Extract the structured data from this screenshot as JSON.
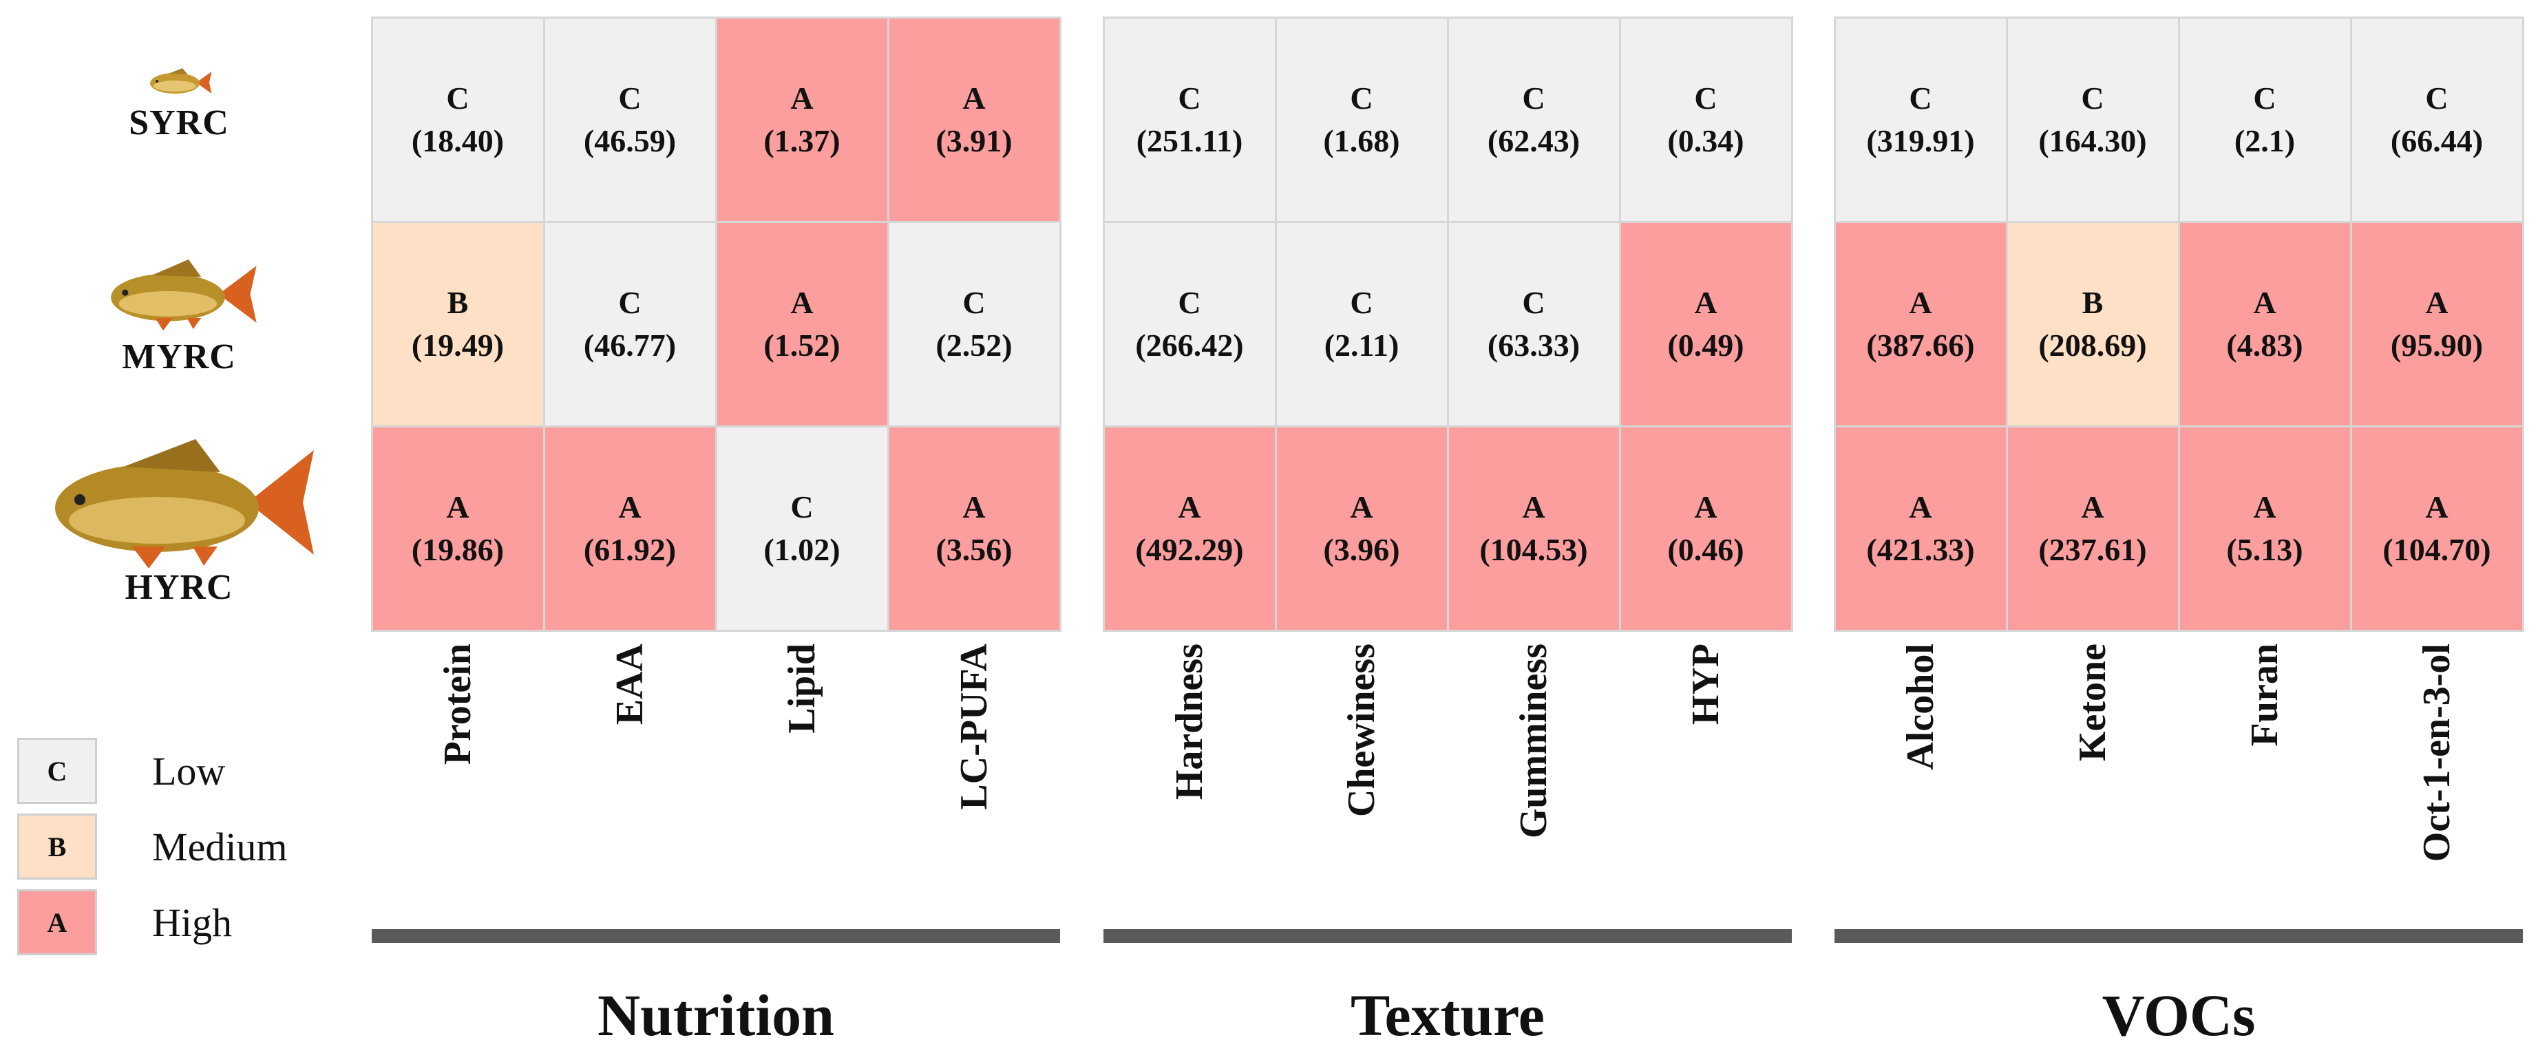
{
  "rows": [
    {
      "name": "SYRC"
    },
    {
      "name": "MYRC"
    },
    {
      "name": "HYRC"
    }
  ],
  "groups": [
    {
      "title": "Nutrition",
      "columns": [
        "Protein",
        "EAA",
        "Lipid",
        "LC-PUFA"
      ],
      "cells": [
        [
          {
            "grade": "C",
            "value": "(18.40)"
          },
          {
            "grade": "C",
            "value": "(46.59)"
          },
          {
            "grade": "A",
            "value": "(1.37)"
          },
          {
            "grade": "A",
            "value": "(3.91)"
          }
        ],
        [
          {
            "grade": "B",
            "value": "(19.49)"
          },
          {
            "grade": "C",
            "value": "(46.77)"
          },
          {
            "grade": "A",
            "value": "(1.52)"
          },
          {
            "grade": "C",
            "value": "(2.52)"
          }
        ],
        [
          {
            "grade": "A",
            "value": "(19.86)"
          },
          {
            "grade": "A",
            "value": "(61.92)"
          },
          {
            "grade": "C",
            "value": "(1.02)"
          },
          {
            "grade": "A",
            "value": "(3.56)"
          }
        ]
      ]
    },
    {
      "title": "Texture",
      "columns": [
        "Hardness",
        "Chewiness",
        "Gumminess",
        "HYP"
      ],
      "cells": [
        [
          {
            "grade": "C",
            "value": "(251.11)"
          },
          {
            "grade": "C",
            "value": "(1.68)"
          },
          {
            "grade": "C",
            "value": "(62.43)"
          },
          {
            "grade": "C",
            "value": "(0.34)"
          }
        ],
        [
          {
            "grade": "C",
            "value": "(266.42)"
          },
          {
            "grade": "C",
            "value": "(2.11)"
          },
          {
            "grade": "C",
            "value": "(63.33)"
          },
          {
            "grade": "A",
            "value": "(0.49)"
          }
        ],
        [
          {
            "grade": "A",
            "value": "(492.29)"
          },
          {
            "grade": "A",
            "value": "(3.96)"
          },
          {
            "grade": "A",
            "value": "(104.53)"
          },
          {
            "grade": "A",
            "value": "(0.46)"
          }
        ]
      ]
    },
    {
      "title": "VOCs",
      "columns": [
        "Alcohol",
        "Ketone",
        "Furan",
        "Oct-1-en-3-ol"
      ],
      "cells": [
        [
          {
            "grade": "C",
            "value": "(319.91)"
          },
          {
            "grade": "C",
            "value": "(164.30)"
          },
          {
            "grade": "C",
            "value": "(2.1)"
          },
          {
            "grade": "C",
            "value": "(66.44)"
          }
        ],
        [
          {
            "grade": "A",
            "value": "(387.66)"
          },
          {
            "grade": "B",
            "value": "(208.69)"
          },
          {
            "grade": "A",
            "value": "(4.83)"
          },
          {
            "grade": "A",
            "value": "(95.90)"
          }
        ],
        [
          {
            "grade": "A",
            "value": "(421.33)"
          },
          {
            "grade": "A",
            "value": "(237.61)"
          },
          {
            "grade": "A",
            "value": "(5.13)"
          },
          {
            "grade": "A",
            "value": "(104.70)"
          }
        ]
      ]
    }
  ],
  "legend": [
    {
      "grade": "C",
      "label": "Low"
    },
    {
      "grade": "B",
      "label": "Medium"
    },
    {
      "grade": "A",
      "label": "High"
    }
  ],
  "colors": {
    "C": "#f0f0f0",
    "B": "#fde0c5",
    "A": "#fc9e9e",
    "border": "#d6d6d6",
    "bar": "#5a5a5a"
  },
  "icons": [
    "carp-fish-small-icon",
    "carp-fish-medium-icon",
    "carp-fish-large-icon"
  ]
}
